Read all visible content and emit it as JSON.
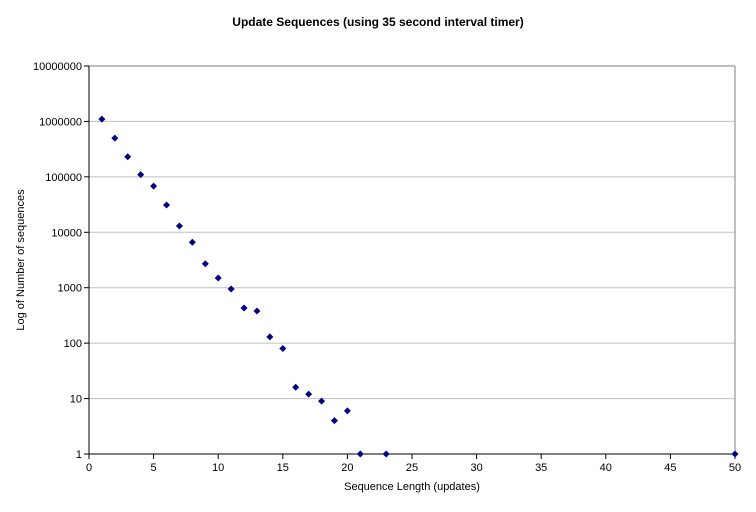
{
  "chart_data": {
    "type": "scatter",
    "title": "Update Sequences (using 35 second interval timer)",
    "xlabel": "Sequence Length (updates)",
    "ylabel": "Log of Number of sequences",
    "xlim": [
      0,
      50
    ],
    "ylim": [
      1,
      10000000
    ],
    "y_scale": "log10",
    "grid": "horizontal-decades",
    "legend": "none",
    "x_ticks": [
      0,
      5,
      10,
      15,
      20,
      25,
      30,
      35,
      40,
      45,
      50
    ],
    "y_ticks": [
      1,
      10,
      100,
      1000,
      10000,
      100000,
      1000000,
      10000000
    ],
    "marker": {
      "shape": "diamond",
      "color": "#000080",
      "size": 7
    },
    "colors": {
      "gridline": "#c0c0c0",
      "plot_border": "#808080",
      "axis": "#000000",
      "background": "#ffffff",
      "text": "#000000"
    },
    "points": [
      {
        "x": 1,
        "y": 1100000
      },
      {
        "x": 2,
        "y": 500000
      },
      {
        "x": 3,
        "y": 230000
      },
      {
        "x": 4,
        "y": 110000
      },
      {
        "x": 5,
        "y": 68000
      },
      {
        "x": 6,
        "y": 31000
      },
      {
        "x": 7,
        "y": 13000
      },
      {
        "x": 8,
        "y": 6600
      },
      {
        "x": 9,
        "y": 2700
      },
      {
        "x": 10,
        "y": 1500
      },
      {
        "x": 11,
        "y": 950
      },
      {
        "x": 12,
        "y": 430
      },
      {
        "x": 13,
        "y": 380
      },
      {
        "x": 14,
        "y": 130
      },
      {
        "x": 15,
        "y": 80
      },
      {
        "x": 16,
        "y": 16
      },
      {
        "x": 17,
        "y": 12
      },
      {
        "x": 18,
        "y": 9
      },
      {
        "x": 19,
        "y": 4
      },
      {
        "x": 20,
        "y": 6
      },
      {
        "x": 21,
        "y": 1
      },
      {
        "x": 23,
        "y": 1
      },
      {
        "x": 50,
        "y": 1
      }
    ]
  }
}
